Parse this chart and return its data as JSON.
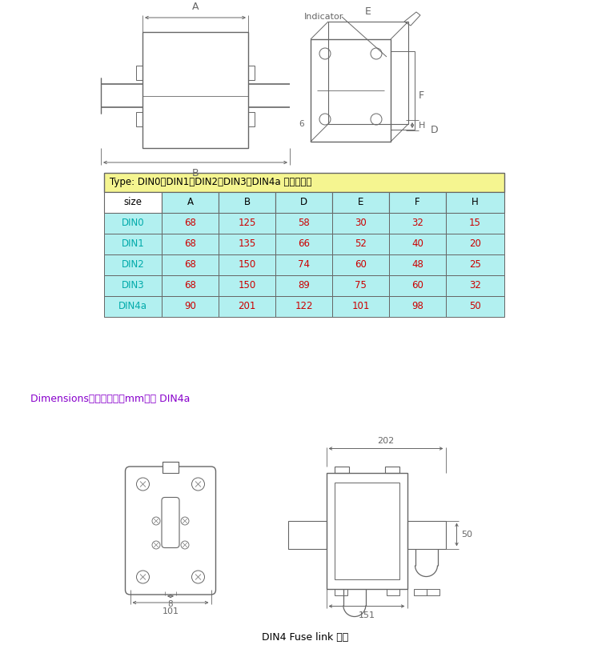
{
  "bg_color": "#ffffff",
  "table_header_bg": "#f5f590",
  "table_cyan_bg": "#b2f0f0",
  "table_white_bg": "#ffffff",
  "table_border_color": "#888888",
  "table_title": "Type: DIN0、DIN1、DIN2、DIN3、DIN4a 尺寸示意图",
  "table_headers": [
    "size",
    "A",
    "B",
    "D",
    "E",
    "F",
    "H"
  ],
  "table_rows": [
    [
      "DIN0",
      "68",
      "125",
      "58",
      "30",
      "32",
      "15"
    ],
    [
      "DIN1",
      "68",
      "135",
      "66",
      "52",
      "40",
      "20"
    ],
    [
      "DIN2",
      "68",
      "150",
      "74",
      "60",
      "48",
      "25"
    ],
    [
      "DIN3",
      "68",
      "150",
      "89",
      "75",
      "60",
      "32"
    ],
    [
      "DIN4a",
      "90",
      "201",
      "122",
      "101",
      "98",
      "50"
    ]
  ],
  "dim_label": "Dimensions安装尺寸图（mm）： DIN4a",
  "bottom_label": "DIN4 Fuse link 熔体",
  "dim_label_color": "#8800cc",
  "line_color": "#666666",
  "text_color": "#333333",
  "cyan_text_color": "#00aaaa",
  "red_text_color": "#cc0000",
  "black_text_color": "#000000"
}
